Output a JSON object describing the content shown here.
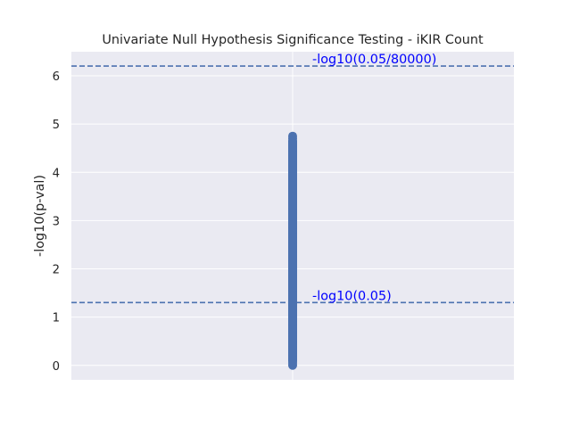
{
  "chart_data": {
    "type": "scatter",
    "title": "Univariate Null Hypothesis Significance Testing - iKIR Count",
    "xlabel": "",
    "ylabel": "-log10(p-val)",
    "x": [
      0
    ],
    "y_points_min": 0.0,
    "y_points_max": 4.75,
    "y_points_sample": [
      0.0,
      0.05,
      0.1,
      0.15,
      0.2,
      0.25,
      0.3,
      0.35,
      0.4,
      0.45,
      0.5,
      0.55,
      0.6,
      0.65,
      0.7,
      0.75,
      0.8,
      0.85,
      0.9,
      0.95,
      1.0,
      1.1,
      1.2,
      1.3,
      1.4,
      1.5,
      1.6,
      1.7,
      1.8,
      1.9,
      2.0,
      2.1,
      2.2,
      2.3,
      2.4,
      2.5,
      2.6,
      2.7,
      2.8,
      2.9,
      3.0,
      3.1,
      3.2,
      3.3,
      3.4,
      3.5,
      3.6,
      3.7,
      3.8,
      3.9,
      4.0,
      4.1,
      4.2,
      4.3,
      4.4,
      4.5,
      4.6,
      4.7,
      4.75
    ],
    "ylim": [
      -0.3,
      6.5
    ],
    "xlim": [
      -1,
      1
    ],
    "yticks": [
      "0",
      "1",
      "2",
      "3",
      "4",
      "5",
      "6"
    ],
    "grid": true,
    "point_color": "#4c72b0",
    "reference_lines": [
      {
        "y": 6.204,
        "label": "-log10(0.05/80000)",
        "color": "#4c72b0",
        "style": "dashed",
        "label_color": "#0000ff"
      },
      {
        "y": 1.301,
        "label": "-log10(0.05)",
        "color": "#4c72b0",
        "style": "dashed",
        "label_color": "#0000ff"
      }
    ],
    "background": "#eaeaf2"
  }
}
